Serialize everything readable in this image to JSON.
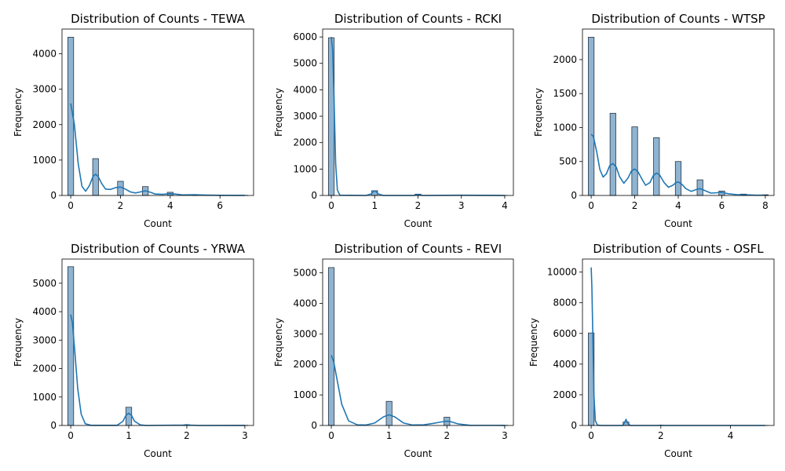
{
  "colors": {
    "bar_fill": "#8fb4d2",
    "bar_edge": "#2b3440",
    "kde_line": "#1f77b4",
    "axis": "#000000"
  },
  "chart_data": [
    {
      "type": "bar",
      "subtype": "histogram-with-kde",
      "title": "Distribution of Counts - TEWA",
      "xlabel": "Count",
      "ylabel": "Frequency",
      "xlim": [
        -0.35,
        7.35
      ],
      "ylim": [
        0,
        4700
      ],
      "xticks": [
        0,
        2,
        4,
        6
      ],
      "yticks": [
        0,
        1000,
        2000,
        3000,
        4000
      ],
      "bin_width": 0.2333,
      "bars": [
        {
          "x": 0,
          "value": 4470
        },
        {
          "x": 1,
          "value": 1040
        },
        {
          "x": 2,
          "value": 400
        },
        {
          "x": 3,
          "value": 250
        },
        {
          "x": 4,
          "value": 90
        },
        {
          "x": 5,
          "value": 20
        },
        {
          "x": 6,
          "value": 8
        },
        {
          "x": 7,
          "value": 4
        }
      ],
      "kde": [
        [
          0,
          2600
        ],
        [
          0.15,
          2000
        ],
        [
          0.3,
          900
        ],
        [
          0.45,
          260
        ],
        [
          0.6,
          120
        ],
        [
          0.75,
          280
        ],
        [
          0.9,
          540
        ],
        [
          1,
          600
        ],
        [
          1.1,
          540
        ],
        [
          1.25,
          330
        ],
        [
          1.4,
          180
        ],
        [
          1.6,
          170
        ],
        [
          1.8,
          220
        ],
        [
          2,
          240
        ],
        [
          2.2,
          180
        ],
        [
          2.4,
          100
        ],
        [
          2.6,
          70
        ],
        [
          2.8,
          100
        ],
        [
          3,
          130
        ],
        [
          3.2,
          90
        ],
        [
          3.4,
          40
        ],
        [
          3.7,
          30
        ],
        [
          4,
          50
        ],
        [
          4.2,
          40
        ],
        [
          4.5,
          15
        ],
        [
          5,
          20
        ],
        [
          5.5,
          8
        ],
        [
          6,
          5
        ],
        [
          7,
          2
        ]
      ]
    },
    {
      "type": "bar",
      "subtype": "histogram-with-kde",
      "title": "Distribution of Counts - RCKI",
      "xlabel": "Count",
      "ylabel": "Frequency",
      "xlim": [
        -0.2,
        4.2
      ],
      "ylim": [
        0,
        6300
      ],
      "xticks": [
        0,
        1,
        2,
        3,
        4
      ],
      "yticks": [
        0,
        1000,
        2000,
        3000,
        4000,
        5000,
        6000
      ],
      "bin_width": 0.1333,
      "bars": [
        {
          "x": 0,
          "value": 5970
        },
        {
          "x": 1,
          "value": 180
        },
        {
          "x": 2,
          "value": 50
        },
        {
          "x": 3,
          "value": 10
        },
        {
          "x": 4,
          "value": 3
        }
      ],
      "kde": [
        [
          0,
          6000
        ],
        [
          0.03,
          5500
        ],
        [
          0.06,
          3800
        ],
        [
          0.1,
          1200
        ],
        [
          0.14,
          200
        ],
        [
          0.2,
          10
        ],
        [
          0.8,
          0
        ],
        [
          0.92,
          60
        ],
        [
          0.97,
          150
        ],
        [
          1,
          170
        ],
        [
          1.03,
          150
        ],
        [
          1.08,
          60
        ],
        [
          1.2,
          0
        ],
        [
          1.9,
          0
        ],
        [
          1.97,
          30
        ],
        [
          2,
          40
        ],
        [
          2.03,
          30
        ],
        [
          2.1,
          0
        ],
        [
          3,
          8
        ],
        [
          4,
          0
        ]
      ]
    },
    {
      "type": "bar",
      "subtype": "histogram-with-kde",
      "title": "Distribution of Counts - WTSP",
      "xlabel": "Count",
      "ylabel": "Frequency",
      "xlim": [
        -0.4,
        8.4
      ],
      "ylim": [
        0,
        2450
      ],
      "xticks": [
        0,
        2,
        4,
        6,
        8
      ],
      "yticks": [
        0,
        500,
        1000,
        1500,
        2000
      ],
      "bin_width": 0.2667,
      "bars": [
        {
          "x": 0,
          "value": 2330
        },
        {
          "x": 1,
          "value": 1210
        },
        {
          "x": 2,
          "value": 1010
        },
        {
          "x": 3,
          "value": 850
        },
        {
          "x": 4,
          "value": 500
        },
        {
          "x": 5,
          "value": 230
        },
        {
          "x": 6,
          "value": 65
        },
        {
          "x": 7,
          "value": 20
        },
        {
          "x": 8,
          "value": 10
        }
      ],
      "kde": [
        [
          0,
          900
        ],
        [
          0.1,
          870
        ],
        [
          0.25,
          650
        ],
        [
          0.4,
          380
        ],
        [
          0.55,
          270
        ],
        [
          0.7,
          320
        ],
        [
          0.85,
          440
        ],
        [
          1,
          470
        ],
        [
          1.15,
          420
        ],
        [
          1.3,
          280
        ],
        [
          1.5,
          180
        ],
        [
          1.7,
          260
        ],
        [
          1.85,
          360
        ],
        [
          2,
          390
        ],
        [
          2.15,
          350
        ],
        [
          2.35,
          230
        ],
        [
          2.5,
          150
        ],
        [
          2.7,
          190
        ],
        [
          2.85,
          290
        ],
        [
          3,
          330
        ],
        [
          3.15,
          300
        ],
        [
          3.35,
          190
        ],
        [
          3.55,
          120
        ],
        [
          3.75,
          150
        ],
        [
          3.9,
          190
        ],
        [
          4,
          200
        ],
        [
          4.15,
          170
        ],
        [
          4.35,
          100
        ],
        [
          4.6,
          60
        ],
        [
          4.85,
          90
        ],
        [
          5,
          100
        ],
        [
          5.2,
          75
        ],
        [
          5.5,
          35
        ],
        [
          5.8,
          40
        ],
        [
          6,
          45
        ],
        [
          6.3,
          25
        ],
        [
          6.7,
          12
        ],
        [
          7,
          12
        ],
        [
          7.5,
          5
        ],
        [
          8,
          3
        ]
      ]
    },
    {
      "type": "bar",
      "subtype": "histogram-with-kde",
      "title": "Distribution of Counts - YRWA",
      "xlabel": "Count",
      "ylabel": "Frequency",
      "xlim": [
        -0.15,
        3.15
      ],
      "ylim": [
        0,
        5850
      ],
      "xticks": [
        0,
        1,
        2,
        3
      ],
      "yticks": [
        0,
        1000,
        2000,
        3000,
        4000,
        5000
      ],
      "bin_width": 0.1,
      "bars": [
        {
          "x": 0,
          "value": 5580
        },
        {
          "x": 1,
          "value": 640
        },
        {
          "x": 2,
          "value": 25
        },
        {
          "x": 3,
          "value": 5
        }
      ],
      "kde": [
        [
          0,
          3900
        ],
        [
          0.03,
          3600
        ],
        [
          0.07,
          2600
        ],
        [
          0.12,
          1300
        ],
        [
          0.18,
          400
        ],
        [
          0.25,
          60
        ],
        [
          0.35,
          5
        ],
        [
          0.8,
          5
        ],
        [
          0.9,
          150
        ],
        [
          0.95,
          350
        ],
        [
          1,
          430
        ],
        [
          1.05,
          350
        ],
        [
          1.1,
          150
        ],
        [
          1.2,
          20
        ],
        [
          1.3,
          0
        ],
        [
          1.95,
          15
        ],
        [
          2,
          25
        ],
        [
          2.05,
          15
        ],
        [
          2.2,
          0
        ],
        [
          3,
          3
        ]
      ]
    },
    {
      "type": "bar",
      "subtype": "histogram-with-kde",
      "title": "Distribution of Counts - REVI",
      "xlabel": "Count",
      "ylabel": "Frequency",
      "xlim": [
        -0.15,
        3.15
      ],
      "ylim": [
        0,
        5450
      ],
      "xticks": [
        0,
        1,
        2,
        3
      ],
      "yticks": [
        0,
        1000,
        2000,
        3000,
        4000,
        5000
      ],
      "bin_width": 0.1,
      "bars": [
        {
          "x": 0,
          "value": 5170
        },
        {
          "x": 1,
          "value": 790
        },
        {
          "x": 2,
          "value": 270
        },
        {
          "x": 3,
          "value": 5
        }
      ],
      "kde": [
        [
          0,
          2300
        ],
        [
          0.04,
          2100
        ],
        [
          0.1,
          1500
        ],
        [
          0.18,
          700
        ],
        [
          0.3,
          150
        ],
        [
          0.45,
          20
        ],
        [
          0.6,
          15
        ],
        [
          0.75,
          80
        ],
        [
          0.9,
          280
        ],
        [
          1,
          350
        ],
        [
          1.1,
          280
        ],
        [
          1.25,
          80
        ],
        [
          1.4,
          15
        ],
        [
          1.6,
          20
        ],
        [
          1.8,
          80
        ],
        [
          1.95,
          130
        ],
        [
          2,
          140
        ],
        [
          2.05,
          130
        ],
        [
          2.2,
          50
        ],
        [
          2.4,
          5
        ],
        [
          3,
          2
        ]
      ]
    },
    {
      "type": "bar",
      "subtype": "histogram-with-kde",
      "title": "Distribution of Counts - OSFL",
      "xlabel": "Count",
      "ylabel": "Frequency",
      "xlim": [
        -0.25,
        5.25
      ],
      "ylim": [
        0,
        10850
      ],
      "xticks": [
        0,
        2,
        4
      ],
      "yticks": [
        0,
        2000,
        4000,
        6000,
        8000,
        10000
      ],
      "bin_width": 0.1667,
      "bars": [
        {
          "x": 0,
          "value": 6030
        },
        {
          "x": 1,
          "value": 220
        },
        {
          "x": 2,
          "value": 10
        },
        {
          "x": 5,
          "value": 3
        }
      ],
      "kde": [
        [
          0,
          10300
        ],
        [
          0.02,
          9000
        ],
        [
          0.05,
          5500
        ],
        [
          0.08,
          2000
        ],
        [
          0.12,
          300
        ],
        [
          0.18,
          20
        ],
        [
          0.3,
          0
        ],
        [
          0.9,
          0
        ],
        [
          0.95,
          150
        ],
        [
          1,
          400
        ],
        [
          1.05,
          150
        ],
        [
          1.12,
          0
        ],
        [
          1.95,
          0
        ],
        [
          2,
          15
        ],
        [
          2.05,
          0
        ],
        [
          5,
          0
        ]
      ]
    }
  ]
}
